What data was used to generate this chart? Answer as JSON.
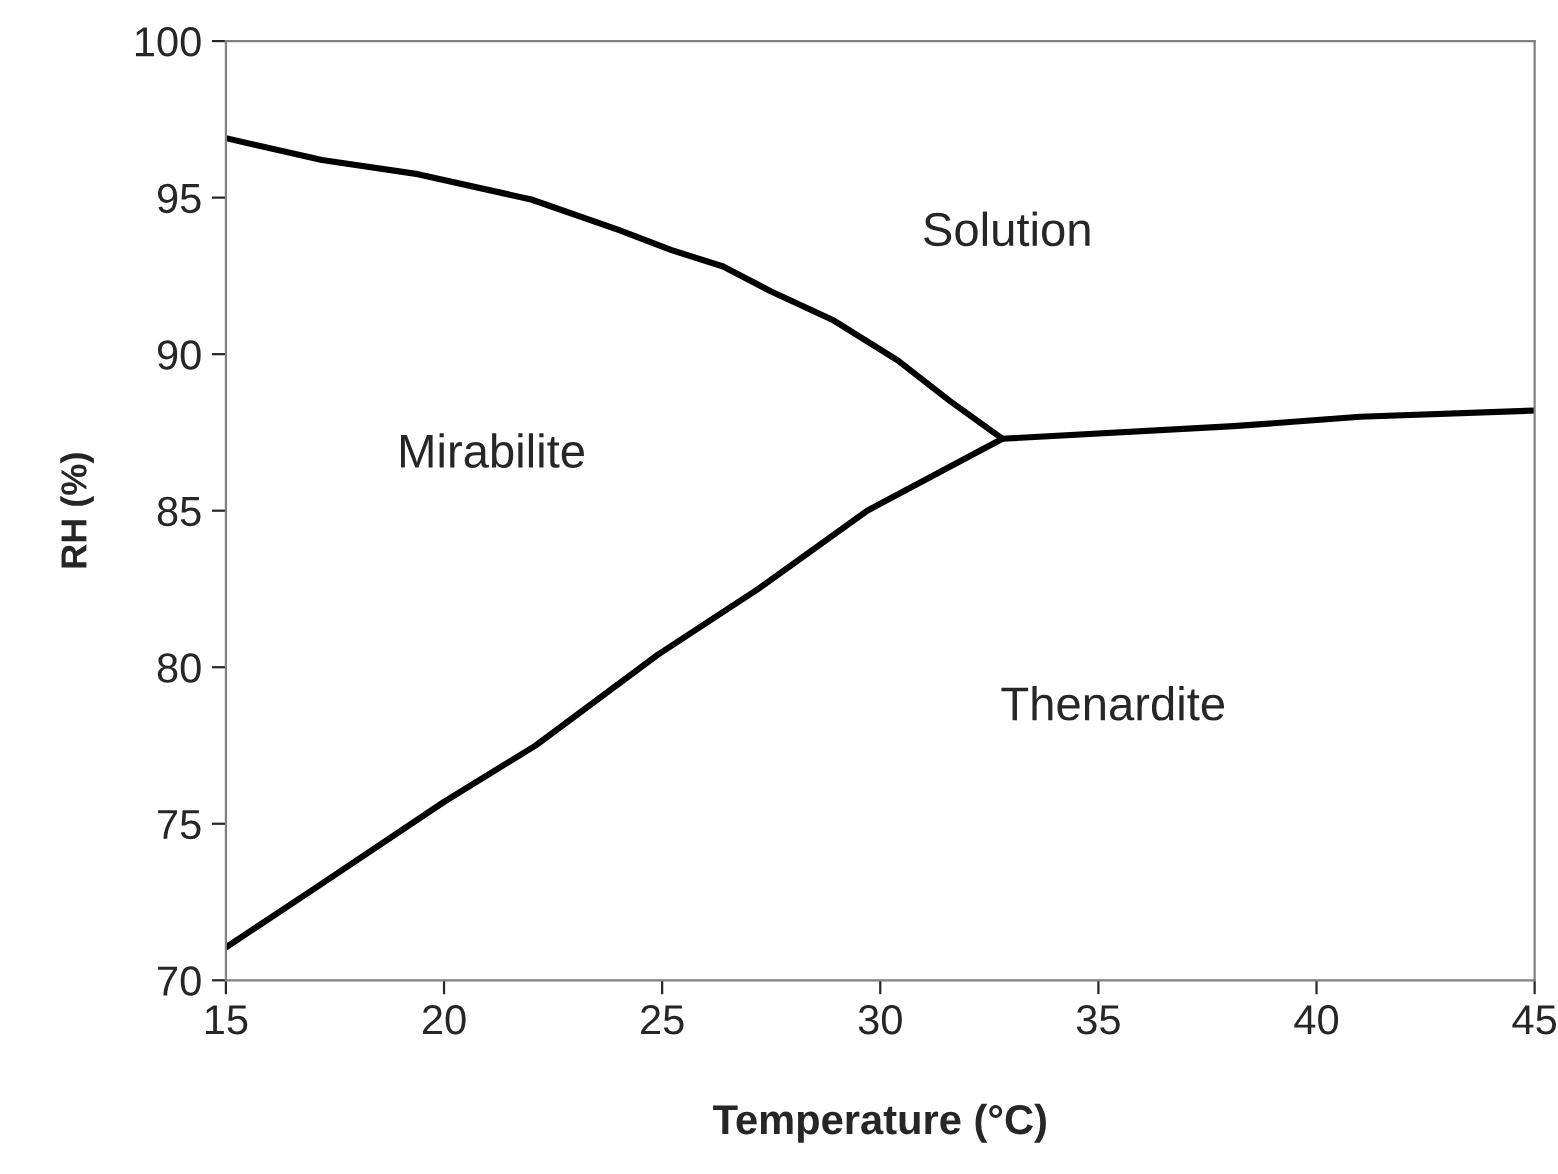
{
  "chart_data": {
    "type": "line",
    "xlabel": "Temperature (°C)",
    "ylabel": "RH (%)",
    "xlim": [
      15,
      45
    ],
    "xticks": [
      15,
      20,
      25,
      30,
      35,
      40,
      45
    ],
    "ylim": [
      70,
      100
    ],
    "yticks": [
      70,
      75,
      80,
      85,
      90,
      95,
      100
    ],
    "grid": false,
    "legend": false,
    "marker": "none",
    "line_style": "solid",
    "series": [
      {
        "color": "#000000",
        "x": [
          15,
          17.2,
          19.4,
          22.0,
          24.0,
          25.2,
          26.4,
          27.5,
          28.9,
          30.4,
          31.6,
          32.8
        ],
        "values": [
          96.9,
          96.2,
          95.75,
          94.94,
          93.97,
          93.33,
          92.8,
          92.0,
          91.1,
          89.8,
          88.5,
          87.3
        ]
      },
      {
        "color": "#000000",
        "x": [
          15,
          17.0,
          20.0,
          22.1,
          24.9,
          27.2,
          29.7,
          32.8,
          38.1,
          41.0,
          45.0
        ],
        "values": [
          71.05,
          72.9,
          75.7,
          77.5,
          80.4,
          82.5,
          85.0,
          87.3,
          87.7,
          88.0,
          88.2
        ]
      }
    ],
    "annotations": [
      "Solution",
      "Mirabilite",
      "Thenardite"
    ]
  }
}
